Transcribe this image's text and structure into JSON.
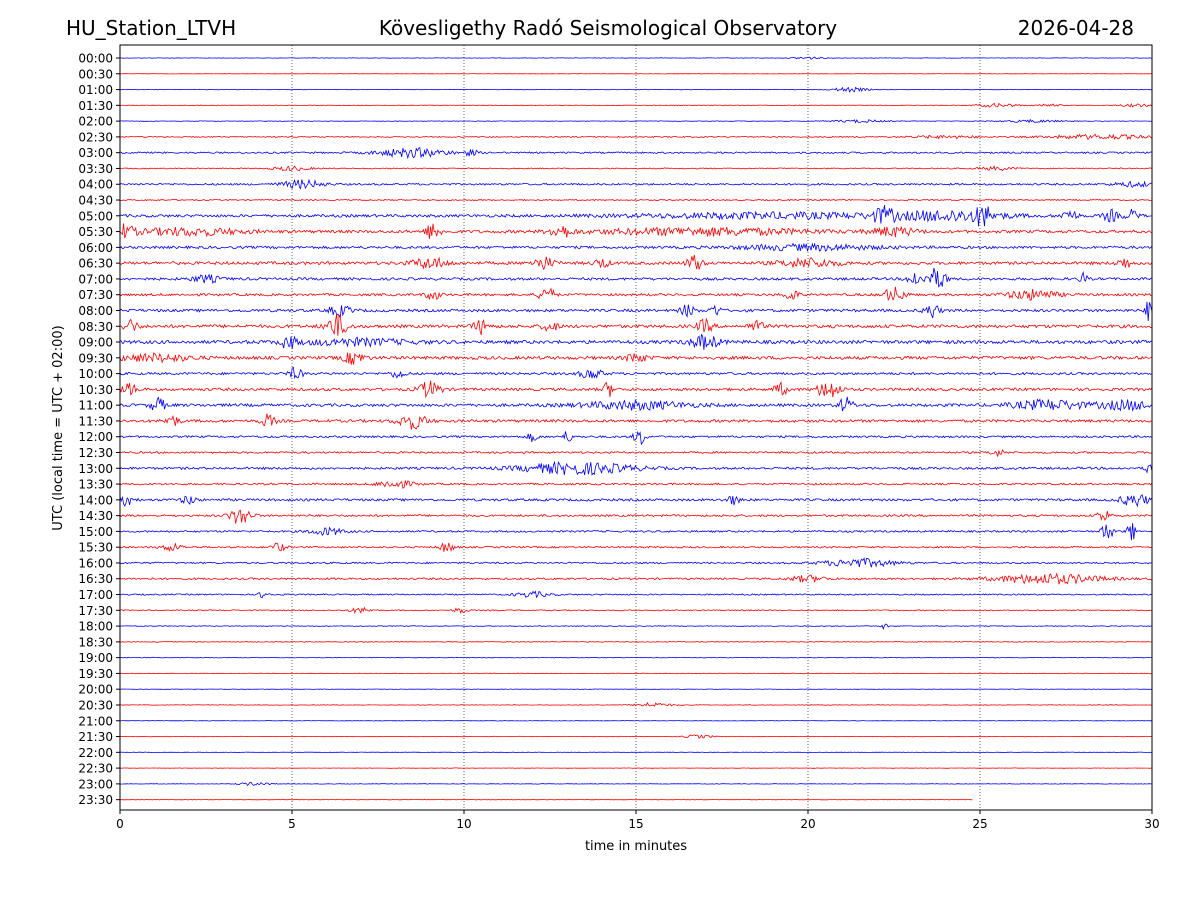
{
  "header": {
    "station": "HU_Station_LTVH",
    "observatory": "Kövesligethy Radó Seismological Observatory",
    "date": "2026-04-28"
  },
  "chart_data": {
    "type": "line",
    "title": "Kövesligethy Radó Seismological Observatory",
    "xlabel": "time in minutes",
    "ylabel": "UTC (local time = UTC + 02:00)",
    "xlim": [
      0,
      30
    ],
    "x_ticks": [
      "0",
      "5",
      "10",
      "15",
      "20",
      "25",
      "30"
    ],
    "x_tick_values": [
      0,
      5,
      10,
      15,
      20,
      25,
      30
    ],
    "vertical_gridlines_at": [
      5,
      10,
      15,
      20,
      25
    ],
    "trace_colors": [
      "#0000ff",
      "#ff0000"
    ],
    "end_minute_last_trace": 24.8,
    "rows": [
      {
        "label": "00:00",
        "noise": 0.05,
        "events": [
          [
            20.0,
            0.4,
            0.3
          ]
        ]
      },
      {
        "label": "00:30",
        "noise": 0.04,
        "events": []
      },
      {
        "label": "01:00",
        "noise": 0.05,
        "events": [
          [
            21.2,
            0.5,
            0.5
          ]
        ]
      },
      {
        "label": "01:30",
        "noise": 0.07,
        "events": [
          [
            25.5,
            0.6,
            0.4
          ],
          [
            27.0,
            0.3,
            0.3
          ],
          [
            29.5,
            0.5,
            0.3
          ]
        ]
      },
      {
        "label": "02:00",
        "noise": 0.06,
        "events": [
          [
            21.5,
            0.8,
            0.3
          ],
          [
            26.5,
            0.8,
            0.3
          ]
        ]
      },
      {
        "label": "02:30",
        "noise": 0.12,
        "events": [
          [
            24.0,
            1.0,
            0.3
          ],
          [
            28.5,
            1.5,
            0.5
          ]
        ]
      },
      {
        "label": "03:00",
        "noise": 0.18,
        "events": [
          [
            8.5,
            1.0,
            1.0
          ],
          [
            10.2,
            0.2,
            0.6
          ]
        ]
      },
      {
        "label": "03:30",
        "noise": 0.12,
        "events": [
          [
            5.0,
            0.5,
            0.5
          ],
          [
            25.5,
            0.5,
            0.4
          ]
        ]
      },
      {
        "label": "04:00",
        "noise": 0.2,
        "events": [
          [
            5.3,
            0.6,
            0.9
          ],
          [
            29.5,
            0.6,
            0.5
          ]
        ]
      },
      {
        "label": "04:30",
        "noise": 0.14,
        "events": []
      },
      {
        "label": "05:00",
        "noise": 0.3,
        "events": [
          [
            19.0,
            4.0,
            0.6
          ],
          [
            22.2,
            0.3,
            1.6
          ],
          [
            24.2,
            1.5,
            1.1
          ],
          [
            25.1,
            0.2,
            2.0
          ],
          [
            27.6,
            0.2,
            1.4
          ],
          [
            28.8,
            0.2,
            1.3
          ],
          [
            29.4,
            0.2,
            1.2
          ]
        ]
      },
      {
        "label": "05:30",
        "noise": 0.32,
        "events": [
          [
            0.1,
            0.3,
            1.4
          ],
          [
            2.0,
            1.5,
            0.8
          ],
          [
            9.1,
            0.2,
            2.0
          ],
          [
            12.8,
            0.3,
            1.4
          ],
          [
            17.0,
            3.0,
            0.8
          ],
          [
            22.5,
            0.6,
            1.0
          ]
        ]
      },
      {
        "label": "06:00",
        "noise": 0.28,
        "events": [
          [
            20.0,
            2.0,
            0.6
          ]
        ]
      },
      {
        "label": "06:30",
        "noise": 0.32,
        "events": [
          [
            9.0,
            0.5,
            1.2
          ],
          [
            12.3,
            0.3,
            1.4
          ],
          [
            14.0,
            0.2,
            1.1
          ],
          [
            16.7,
            0.2,
            2.0
          ],
          [
            20.0,
            0.8,
            1.0
          ],
          [
            29.2,
            0.2,
            1.2
          ]
        ]
      },
      {
        "label": "07:00",
        "noise": 0.28,
        "events": [
          [
            2.5,
            0.4,
            0.8
          ],
          [
            23.1,
            0.2,
            1.6
          ],
          [
            23.6,
            0.15,
            2.5
          ],
          [
            23.9,
            0.15,
            2.0
          ],
          [
            28.0,
            0.1,
            1.4
          ]
        ]
      },
      {
        "label": "07:30",
        "noise": 0.26,
        "events": [
          [
            9.1,
            0.2,
            1.2
          ],
          [
            12.4,
            0.2,
            2.0
          ],
          [
            19.5,
            0.2,
            1.2
          ],
          [
            22.5,
            0.3,
            1.6
          ],
          [
            26.5,
            0.7,
            1.1
          ]
        ]
      },
      {
        "label": "08:00",
        "noise": 0.3,
        "events": [
          [
            6.4,
            0.3,
            1.2
          ],
          [
            16.5,
            0.2,
            1.3
          ],
          [
            17.3,
            0.15,
            1.2
          ],
          [
            23.6,
            0.2,
            1.7
          ],
          [
            29.9,
            0.1,
            2.2
          ]
        ]
      },
      {
        "label": "08:30",
        "noise": 0.35,
        "events": [
          [
            0.3,
            0.2,
            1.5
          ],
          [
            6.3,
            0.3,
            2.5
          ],
          [
            10.5,
            0.2,
            1.6
          ],
          [
            12.5,
            0.2,
            1.2
          ],
          [
            17.0,
            0.2,
            1.5
          ],
          [
            18.5,
            0.2,
            1.2
          ]
        ]
      },
      {
        "label": "09:00",
        "noise": 0.38,
        "events": [
          [
            4.9,
            0.2,
            1.4
          ],
          [
            6.8,
            1.5,
            0.7
          ],
          [
            17.0,
            0.4,
            1.5
          ]
        ]
      },
      {
        "label": "09:30",
        "noise": 0.35,
        "events": [
          [
            1.0,
            1.0,
            0.8
          ],
          [
            6.8,
            0.3,
            1.3
          ],
          [
            15.0,
            0.3,
            1.0
          ]
        ]
      },
      {
        "label": "10:00",
        "noise": 0.26,
        "events": [
          [
            5.1,
            0.2,
            1.3
          ],
          [
            8.1,
            0.2,
            1.0
          ],
          [
            13.7,
            0.3,
            1.2
          ]
        ]
      },
      {
        "label": "10:30",
        "noise": 0.3,
        "events": [
          [
            0.3,
            0.2,
            1.3
          ],
          [
            9.0,
            0.3,
            1.8
          ],
          [
            14.2,
            0.15,
            1.6
          ],
          [
            19.2,
            0.2,
            1.3
          ],
          [
            20.6,
            0.3,
            2.2
          ]
        ]
      },
      {
        "label": "11:00",
        "noise": 0.32,
        "events": [
          [
            1.1,
            0.2,
            1.6
          ],
          [
            15.0,
            1.5,
            0.9
          ],
          [
            21.1,
            0.2,
            1.7
          ],
          [
            27.0,
            1.0,
            1.1
          ],
          [
            29.3,
            0.8,
            1.0
          ]
        ]
      },
      {
        "label": "11:30",
        "noise": 0.3,
        "events": [
          [
            1.5,
            0.2,
            1.3
          ],
          [
            4.3,
            0.2,
            1.4
          ],
          [
            8.5,
            0.4,
            1.7
          ]
        ]
      },
      {
        "label": "12:00",
        "noise": 0.22,
        "events": [
          [
            12.0,
            0.15,
            1.0
          ],
          [
            13.0,
            0.15,
            1.2
          ],
          [
            15.1,
            0.15,
            2.0
          ]
        ]
      },
      {
        "label": "12:30",
        "noise": 0.2,
        "events": [
          [
            25.5,
            0.2,
            0.8
          ]
        ]
      },
      {
        "label": "13:00",
        "noise": 0.25,
        "events": [
          [
            13.3,
            1.6,
            1.3
          ],
          [
            29.9,
            0.1,
            1.2
          ]
        ]
      },
      {
        "label": "13:30",
        "noise": 0.2,
        "events": [
          [
            8.0,
            0.5,
            0.9
          ]
        ]
      },
      {
        "label": "14:00",
        "noise": 0.26,
        "events": [
          [
            0.2,
            0.2,
            1.3
          ],
          [
            2.0,
            0.2,
            1.0
          ],
          [
            17.8,
            0.2,
            1.0
          ],
          [
            29.5,
            0.4,
            1.4
          ]
        ]
      },
      {
        "label": "14:30",
        "noise": 0.22,
        "events": [
          [
            3.5,
            0.3,
            2.0
          ],
          [
            28.6,
            0.15,
            1.8
          ]
        ]
      },
      {
        "label": "15:00",
        "noise": 0.2,
        "events": [
          [
            6.0,
            0.5,
            0.8
          ],
          [
            28.7,
            0.15,
            2.4
          ],
          [
            29.4,
            0.12,
            2.2
          ]
        ]
      },
      {
        "label": "15:30",
        "noise": 0.18,
        "events": [
          [
            1.5,
            0.3,
            0.8
          ],
          [
            4.6,
            0.2,
            1.0
          ],
          [
            9.5,
            0.2,
            1.2
          ]
        ]
      },
      {
        "label": "16:00",
        "noise": 0.18,
        "events": [
          [
            21.5,
            1.0,
            0.9
          ]
        ]
      },
      {
        "label": "16:30",
        "noise": 0.2,
        "events": [
          [
            20.0,
            0.5,
            0.7
          ],
          [
            27.0,
            1.5,
            1.1
          ]
        ]
      },
      {
        "label": "17:00",
        "noise": 0.15,
        "events": [
          [
            4.2,
            0.15,
            0.9
          ],
          [
            12.0,
            0.5,
            0.6
          ]
        ]
      },
      {
        "label": "17:30",
        "noise": 0.12,
        "events": [
          [
            7.0,
            0.3,
            0.6
          ],
          [
            9.9,
            0.2,
            0.6
          ]
        ]
      },
      {
        "label": "18:00",
        "noise": 0.08,
        "events": [
          [
            22.2,
            0.1,
            0.8
          ]
        ]
      },
      {
        "label": "18:30",
        "noise": 0.08,
        "events": []
      },
      {
        "label": "19:00",
        "noise": 0.07,
        "events": []
      },
      {
        "label": "19:30",
        "noise": 0.06,
        "events": []
      },
      {
        "label": "20:00",
        "noise": 0.05,
        "events": []
      },
      {
        "label": "20:30",
        "noise": 0.06,
        "events": [
          [
            15.5,
            0.5,
            0.5
          ]
        ]
      },
      {
        "label": "21:00",
        "noise": 0.05,
        "events": []
      },
      {
        "label": "21:30",
        "noise": 0.05,
        "events": [
          [
            16.8,
            0.4,
            0.4
          ]
        ]
      },
      {
        "label": "22:00",
        "noise": 0.05,
        "events": []
      },
      {
        "label": "22:30",
        "noise": 0.04,
        "events": []
      },
      {
        "label": "23:00",
        "noise": 0.05,
        "events": [
          [
            3.9,
            0.4,
            0.4
          ]
        ]
      },
      {
        "label": "23:30",
        "noise": 0.04,
        "events": []
      }
    ]
  }
}
